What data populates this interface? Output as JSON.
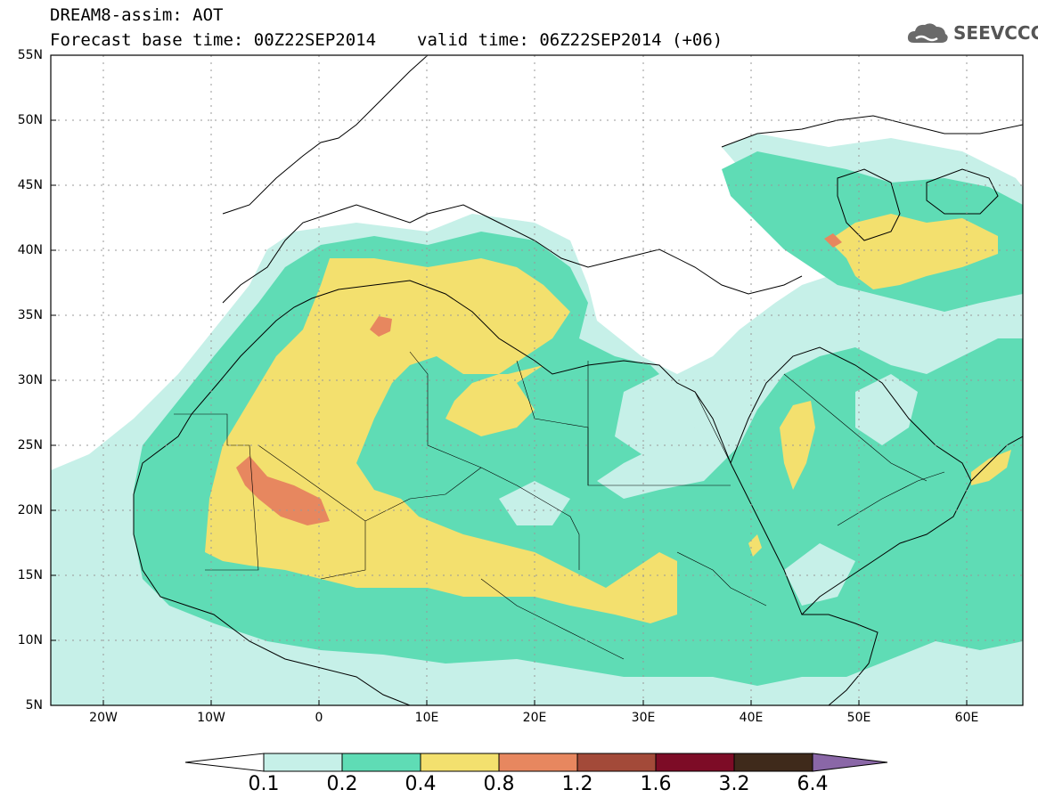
{
  "header": {
    "title_line1": "DREAM8-assim: AOT",
    "base_time": "Forecast base time: 00Z22SEP2014",
    "valid_time": "valid time: 06Z22SEP2014 (+06)",
    "logo_text": "SEEVCCC",
    "logo_icon": "cloud-icon"
  },
  "map": {
    "region": "North Africa, Middle East and Europe",
    "lat_labels": [
      "55N",
      "50N",
      "45N",
      "40N",
      "35N",
      "30N",
      "25N",
      "20N",
      "15N",
      "10N",
      "5N"
    ],
    "lon_labels": [
      "20W",
      "10W",
      "0",
      "10E",
      "20E",
      "30E",
      "40E",
      "50E",
      "60E"
    ],
    "lat_range": [
      5,
      55
    ],
    "lon_range": [
      -25,
      65
    ],
    "grid": "dotted"
  },
  "colorbar": {
    "levels": [
      "0.1",
      "0.2",
      "0.4",
      "0.8",
      "1.2",
      "1.6",
      "3.2",
      "6.4"
    ],
    "colors": [
      "#ffffff",
      "#c6f0e8",
      "#5fdcb5",
      "#f3e06e",
      "#e7875f",
      "#a34a39",
      "#7d0c26",
      "#3f2a1b",
      "#8a67a7"
    ]
  }
}
